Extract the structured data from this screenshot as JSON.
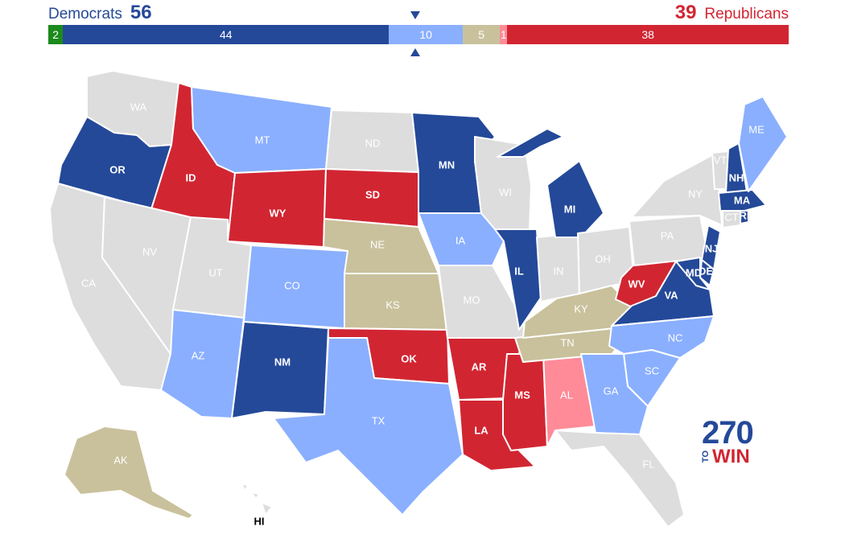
{
  "header": {
    "dem_label": "Democrats",
    "dem_count": "56",
    "rep_count": "39",
    "rep_label": "Republicans"
  },
  "bar": [
    {
      "label": "2",
      "value": 2,
      "color": "#1b8a1b"
    },
    {
      "label": "44",
      "value": 44,
      "color": "#244999"
    },
    {
      "label": "10",
      "value": 10,
      "color": "#8aafff"
    },
    {
      "label": "5",
      "value": 5,
      "color": "#c9c19c"
    },
    {
      "label": "1",
      "value": 1,
      "color": "#ff8b98"
    },
    {
      "label": "38",
      "value": 38,
      "color": "#d22532"
    }
  ],
  "colors": {
    "safe_dem": "#244999",
    "lean_dem": "#8aafff",
    "toss_up": "#c9c19c",
    "lean_rep": "#ff8b98",
    "safe_rep": "#d22532",
    "no_race": "#dddddd"
  },
  "states": [
    {
      "abbr": "WA",
      "rating": "none"
    },
    {
      "abbr": "OR",
      "rating": "safe_dem"
    },
    {
      "abbr": "CA",
      "rating": "none"
    },
    {
      "abbr": "ID",
      "rating": "safe_rep"
    },
    {
      "abbr": "NV",
      "rating": "none"
    },
    {
      "abbr": "MT",
      "rating": "lean_dem"
    },
    {
      "abbr": "WY",
      "rating": "safe_rep"
    },
    {
      "abbr": "UT",
      "rating": "none"
    },
    {
      "abbr": "AZ",
      "rating": "lean_dem"
    },
    {
      "abbr": "CO",
      "rating": "lean_dem"
    },
    {
      "abbr": "NM",
      "rating": "safe_dem"
    },
    {
      "abbr": "ND",
      "rating": "none"
    },
    {
      "abbr": "SD",
      "rating": "safe_rep"
    },
    {
      "abbr": "NE",
      "rating": "toss_up"
    },
    {
      "abbr": "KS",
      "rating": "toss_up"
    },
    {
      "abbr": "OK",
      "rating": "safe_rep"
    },
    {
      "abbr": "TX",
      "rating": "lean_dem"
    },
    {
      "abbr": "MN",
      "rating": "safe_dem"
    },
    {
      "abbr": "IA",
      "rating": "lean_dem"
    },
    {
      "abbr": "MO",
      "rating": "none"
    },
    {
      "abbr": "AR",
      "rating": "safe_rep"
    },
    {
      "abbr": "LA",
      "rating": "safe_rep"
    },
    {
      "abbr": "WI",
      "rating": "none"
    },
    {
      "abbr": "IL",
      "rating": "safe_dem"
    },
    {
      "abbr": "MS",
      "rating": "safe_rep"
    },
    {
      "abbr": "AL",
      "rating": "lean_rep"
    },
    {
      "abbr": "TN",
      "rating": "toss_up"
    },
    {
      "abbr": "KY",
      "rating": "toss_up"
    },
    {
      "abbr": "IN",
      "rating": "none"
    },
    {
      "abbr": "MI",
      "rating": "safe_dem"
    },
    {
      "abbr": "OH",
      "rating": "none"
    },
    {
      "abbr": "WV",
      "rating": "safe_rep"
    },
    {
      "abbr": "VA",
      "rating": "safe_dem"
    },
    {
      "abbr": "NC",
      "rating": "lean_dem"
    },
    {
      "abbr": "SC",
      "rating": "lean_dem"
    },
    {
      "abbr": "GA",
      "rating": "lean_dem"
    },
    {
      "abbr": "FL",
      "rating": "none"
    },
    {
      "abbr": "PA",
      "rating": "none"
    },
    {
      "abbr": "NY",
      "rating": "none"
    },
    {
      "abbr": "NJ",
      "rating": "safe_dem"
    },
    {
      "abbr": "DE",
      "rating": "safe_dem"
    },
    {
      "abbr": "MD",
      "rating": "safe_dem"
    },
    {
      "abbr": "VT",
      "rating": "none"
    },
    {
      "abbr": "NH",
      "rating": "safe_dem"
    },
    {
      "abbr": "MA",
      "rating": "safe_dem"
    },
    {
      "abbr": "CT",
      "rating": "none"
    },
    {
      "abbr": "RI",
      "rating": "safe_dem"
    },
    {
      "abbr": "ME",
      "rating": "lean_dem"
    },
    {
      "abbr": "AK",
      "rating": "toss_up"
    },
    {
      "abbr": "HI",
      "rating": "none"
    }
  ],
  "logo": {
    "number": "270",
    "to": "TO",
    "win": "WIN"
  }
}
